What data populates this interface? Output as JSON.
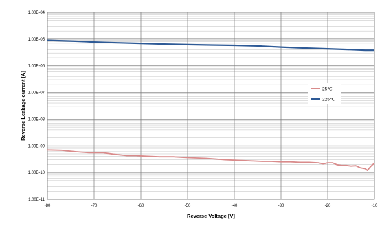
{
  "chart_data": {
    "type": "line",
    "xlabel": "Reverse Voltage [V]",
    "ylabel": "Reverse Leakage current [A]",
    "x_ticks": [
      "-80",
      "-70",
      "-60",
      "-50",
      "-40",
      "-30",
      "-20",
      "-10"
    ],
    "y_ticks": [
      "1.00E-04",
      "1.00E-05",
      "1.00E-06",
      "1.00E-07",
      "1.00E-08",
      "1.00E-09",
      "1.00E-10",
      "1.00E-11"
    ],
    "xlim": [
      -80,
      -10
    ],
    "ylim": [
      1e-11,
      0.0001
    ],
    "y_scale": "log",
    "grid": true,
    "legend_position": "right",
    "series": [
      {
        "name": "25℃",
        "color": "#d98b8b",
        "x": [
          -80,
          -77,
          -74,
          -71,
          -68,
          -66,
          -63,
          -61,
          -59,
          -56,
          -53,
          -50,
          -48,
          -46,
          -44,
          -42,
          -40,
          -38,
          -36,
          -34,
          -32,
          -30,
          -28,
          -26,
          -24,
          -22,
          -21,
          -20,
          -19,
          -18,
          -17,
          -16,
          -15,
          -14,
          -13,
          -12,
          -11.5,
          -11,
          -10.5,
          -10
        ],
        "y": [
          7e-10,
          6.8e-10,
          6e-10,
          5.5e-10,
          5.5e-10,
          4.9e-10,
          4.3e-10,
          4.3e-10,
          4.1e-10,
          3.9e-10,
          3.9e-10,
          3.6e-10,
          3.5e-10,
          3.4e-10,
          3.2e-10,
          3e-10,
          2.9e-10,
          2.8e-10,
          2.7e-10,
          2.6e-10,
          2.6e-10,
          2.5e-10,
          2.5e-10,
          2.4e-10,
          2.4e-10,
          2.3e-10,
          2.1e-10,
          2.3e-10,
          2.3e-10,
          1.95e-10,
          1.85e-10,
          1.85e-10,
          1.75e-10,
          1.8e-10,
          1.5e-10,
          1.4e-10,
          1.2e-10,
          1.55e-10,
          1.9e-10,
          2.2e-10
        ]
      },
      {
        "name": "225℃",
        "color": "#2e5a96",
        "x": [
          -80,
          -75,
          -70,
          -65,
          -60,
          -55,
          -50,
          -45,
          -40,
          -35,
          -30,
          -25,
          -20,
          -15,
          -12,
          -10
        ],
        "y": [
          9e-06,
          8.5e-06,
          7.8e-06,
          7.3e-06,
          6.9e-06,
          6.5e-06,
          6.2e-06,
          6e-06,
          5.8e-06,
          5.5e-06,
          5e-06,
          4.6e-06,
          4.3e-06,
          4e-06,
          3.8e-06,
          3.8e-06
        ]
      }
    ]
  }
}
